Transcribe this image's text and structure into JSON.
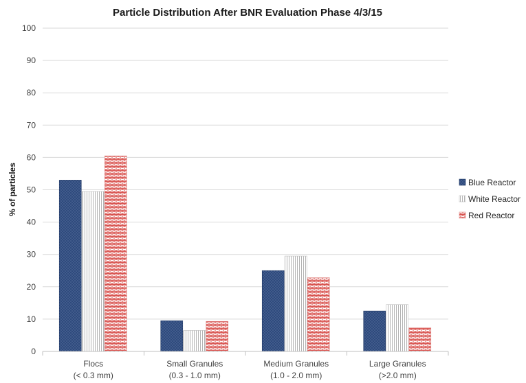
{
  "chart_data": {
    "type": "bar",
    "title": "Particle Distribution After BNR Evaluation Phase 4/3/15",
    "xlabel": "",
    "ylabel": "% of particles",
    "ylim": [
      0,
      100
    ],
    "yticks": [
      0,
      10,
      20,
      30,
      40,
      50,
      60,
      70,
      80,
      90,
      100
    ],
    "grid": true,
    "legend_position": "right",
    "categories": [
      [
        "Flocs",
        "(< 0.3 mm)"
      ],
      [
        "Small Granules",
        "(0.3 - 1.0 mm)"
      ],
      [
        "Medium Granules",
        "(1.0 - 2.0 mm)"
      ],
      [
        "Large Granules",
        "(>2.0 mm)"
      ]
    ],
    "series": [
      {
        "name": "Blue Reactor",
        "values": [
          53,
          9.5,
          25,
          12.5
        ],
        "color": "#2e4a7d",
        "pattern": "dots"
      },
      {
        "name": "White Reactor",
        "values": [
          49.5,
          6.5,
          29.5,
          14.5
        ],
        "color": "#bfbfbf",
        "pattern": "vlines"
      },
      {
        "name": "Red Reactor",
        "values": [
          60.5,
          9.3,
          22.8,
          7.3
        ],
        "color": "#d9534f",
        "pattern": "bricks"
      }
    ]
  }
}
